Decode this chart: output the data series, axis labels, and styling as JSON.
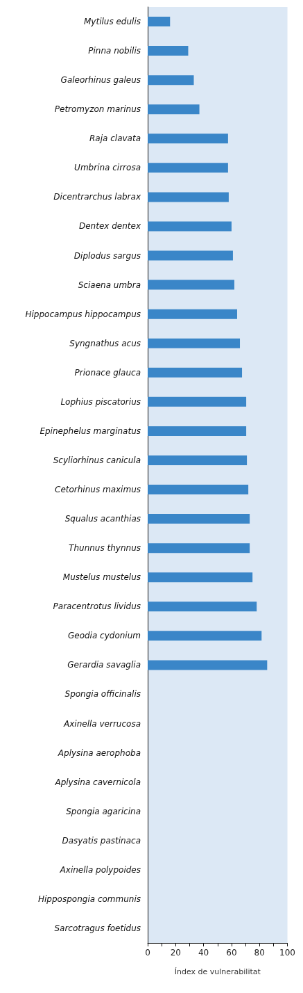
{
  "chart_data": {
    "type": "bar",
    "orientation": "horizontal",
    "xlabel": "Índex de vulnerabilitat",
    "categories": [
      "Mytilus edulis",
      "Pinna nobilis",
      "Galeorhinus galeus",
      "Petromyzon marinus",
      "Raja clavata",
      "Umbrina cirrosa",
      "Dicentrarchus labrax",
      "Dentex dentex",
      "Diplodus sargus",
      "Sciaena umbra",
      "Hippocampus hippocampus",
      "Syngnathus acus",
      "Prionace glauca",
      "Lophius piscatorius",
      "Epinephelus marginatus",
      "Scyliorhinus canicula",
      "Cetorhinus maximus",
      "Squalus acanthias",
      "Thunnus thynnus",
      "Mustelus mustelus",
      "Paracentrotus lividus",
      "Geodia cydonium",
      "Gerardia savaglia",
      "Spongia officinalis",
      "Axinella verrucosa",
      "Aplysina aerophoba",
      "Aplysina cavernicola",
      "Spongia agaricina",
      "Dasyatis pastinaca",
      "Axinella polypoides",
      "Hippospongia communis",
      "Sarcotragus foetidus"
    ],
    "values": [
      16,
      29,
      33,
      37,
      57.5,
      57.5,
      58,
      60,
      61,
      62,
      64,
      66,
      67.5,
      70.5,
      70.5,
      71,
      72,
      73,
      73,
      75,
      78,
      81.5,
      85.5,
      null,
      null,
      null,
      null,
      null,
      null,
      null,
      null,
      null
    ],
    "color": "#3a86c8",
    "xlim": [
      0,
      100
    ],
    "xticks": [
      0,
      {
        "value": 10,
        "label": null
      },
      20,
      {
        "value": 30,
        "label": null
      },
      40,
      {
        "value": 50,
        "label": null
      },
      60,
      {
        "value": 70,
        "label": null
      },
      80,
      {
        "value": 90,
        "label": null
      },
      100
    ],
    "grid": false
  }
}
